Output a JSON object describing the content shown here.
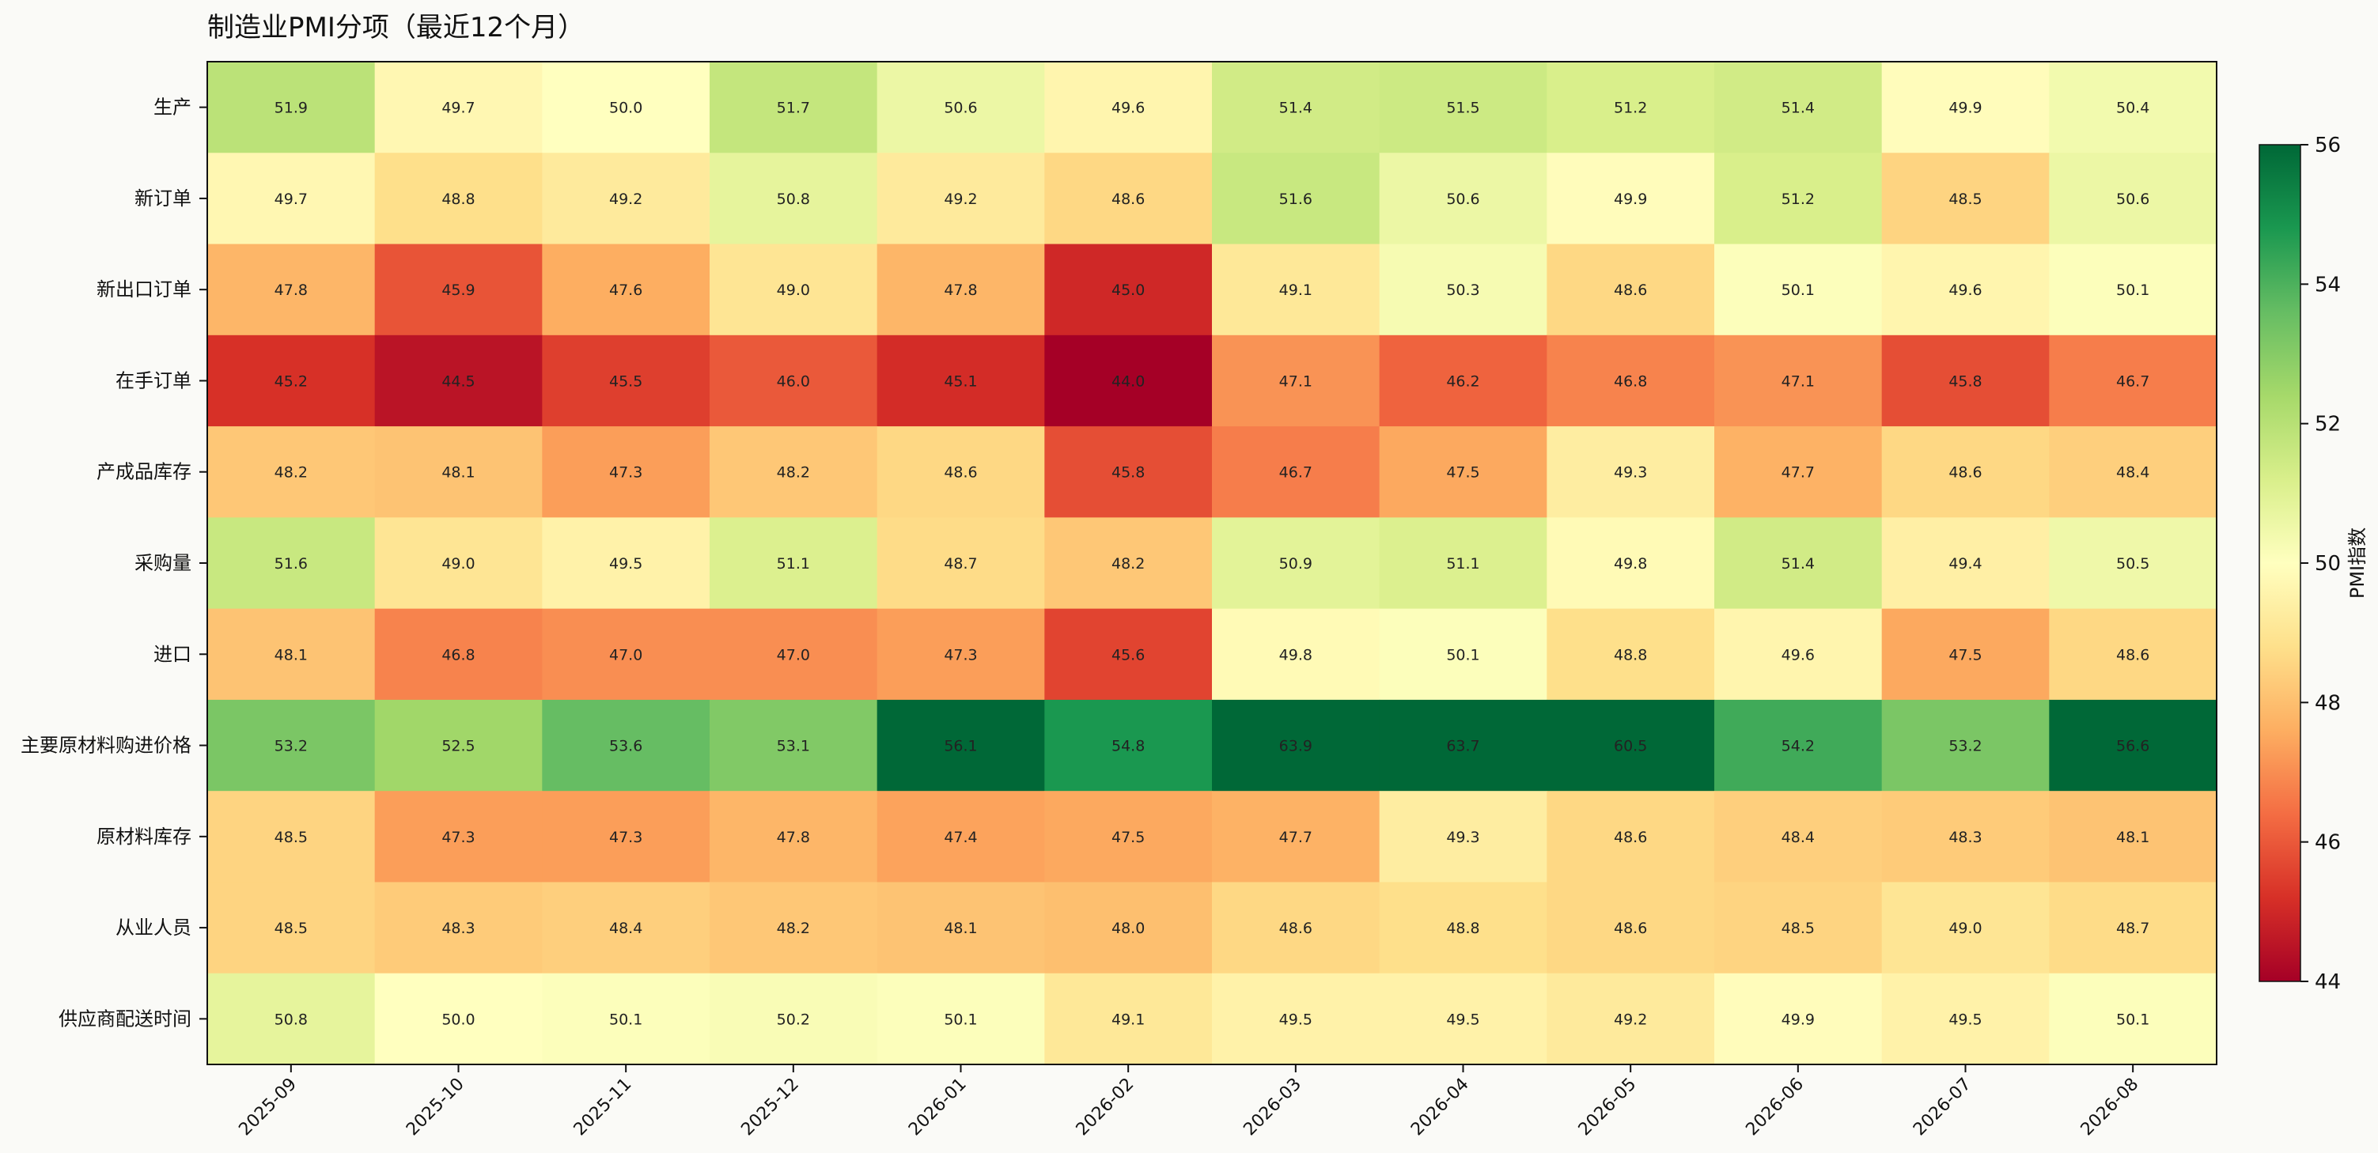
{
  "chart_data": {
    "type": "heatmap",
    "title": "制造业PMI分项（最近12个月）",
    "xlabel": "",
    "ylabel": "",
    "colorbar_label": "PMI指数",
    "colormap": "RdYlGn",
    "color_range": [
      44,
      56
    ],
    "colorbar_ticks": [
      "44",
      "46",
      "48",
      "50",
      "52",
      "54",
      "56"
    ],
    "x": [
      "2025-09",
      "2025-10",
      "2025-11",
      "2025-12",
      "2026-01",
      "2026-02",
      "2026-03",
      "2026-04",
      "2026-05",
      "2026-06",
      "2026-07",
      "2026-08"
    ],
    "y": [
      "生产",
      "新订单",
      "新出口订单",
      "在手订单",
      "产成品库存",
      "采购量",
      "进口",
      "主要原材料购进价格",
      "原材料库存",
      "从业人员",
      "供应商配送时间"
    ],
    "values": [
      [
        51.9,
        49.7,
        50.0,
        51.7,
        50.6,
        49.6,
        51.4,
        51.5,
        51.2,
        51.4,
        49.9,
        50.4
      ],
      [
        49.7,
        48.8,
        49.2,
        50.8,
        49.2,
        48.6,
        51.6,
        50.6,
        49.9,
        51.2,
        48.5,
        50.6
      ],
      [
        47.8,
        45.9,
        47.6,
        49.0,
        47.8,
        45.0,
        49.1,
        50.3,
        48.6,
        50.1,
        49.6,
        50.1
      ],
      [
        45.2,
        44.5,
        45.5,
        46.0,
        45.1,
        44.0,
        47.1,
        46.2,
        46.8,
        47.1,
        45.8,
        46.7
      ],
      [
        48.2,
        48.1,
        47.3,
        48.2,
        48.6,
        45.8,
        46.7,
        47.5,
        49.3,
        47.7,
        48.6,
        48.4
      ],
      [
        51.6,
        49.0,
        49.5,
        51.1,
        48.7,
        48.2,
        50.9,
        51.1,
        49.8,
        51.4,
        49.4,
        50.5
      ],
      [
        48.1,
        46.8,
        47.0,
        47.0,
        47.3,
        45.6,
        49.8,
        50.1,
        48.8,
        49.6,
        47.5,
        48.6
      ],
      [
        53.2,
        52.5,
        53.6,
        53.1,
        56.1,
        54.8,
        63.9,
        63.7,
        60.5,
        54.2,
        53.2,
        56.6
      ],
      [
        48.5,
        47.3,
        47.3,
        47.8,
        47.4,
        47.5,
        47.7,
        49.3,
        48.6,
        48.4,
        48.3,
        48.1
      ],
      [
        48.5,
        48.3,
        48.4,
        48.2,
        48.1,
        48.0,
        48.6,
        48.8,
        48.6,
        48.5,
        49.0,
        48.7
      ],
      [
        50.8,
        50.0,
        50.1,
        50.2,
        50.1,
        49.1,
        49.5,
        49.5,
        49.2,
        49.9,
        49.5,
        50.1
      ]
    ],
    "grid": false,
    "legend": "colorbar-right"
  }
}
